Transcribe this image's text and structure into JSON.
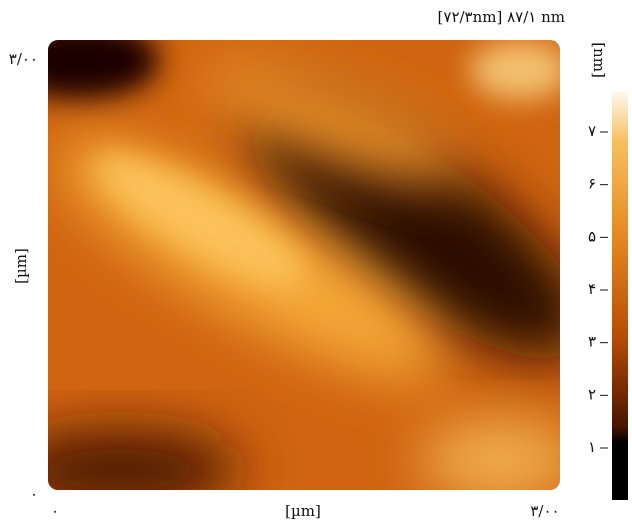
{
  "header": {
    "range": "[۷۲/۳nm] ۸۷/۱ nm"
  },
  "y_axis": {
    "label": "[µm]",
    "top": "۳/۰۰",
    "bottom": "۰"
  },
  "x_axis": {
    "label": "[µm]",
    "left": "۰",
    "right": "۳/۰۰"
  },
  "colorbar": {
    "label": "[nm]",
    "ticks": [
      "۷",
      "۶",
      "۵",
      "۴",
      "۳",
      "۲",
      "۱"
    ]
  }
}
